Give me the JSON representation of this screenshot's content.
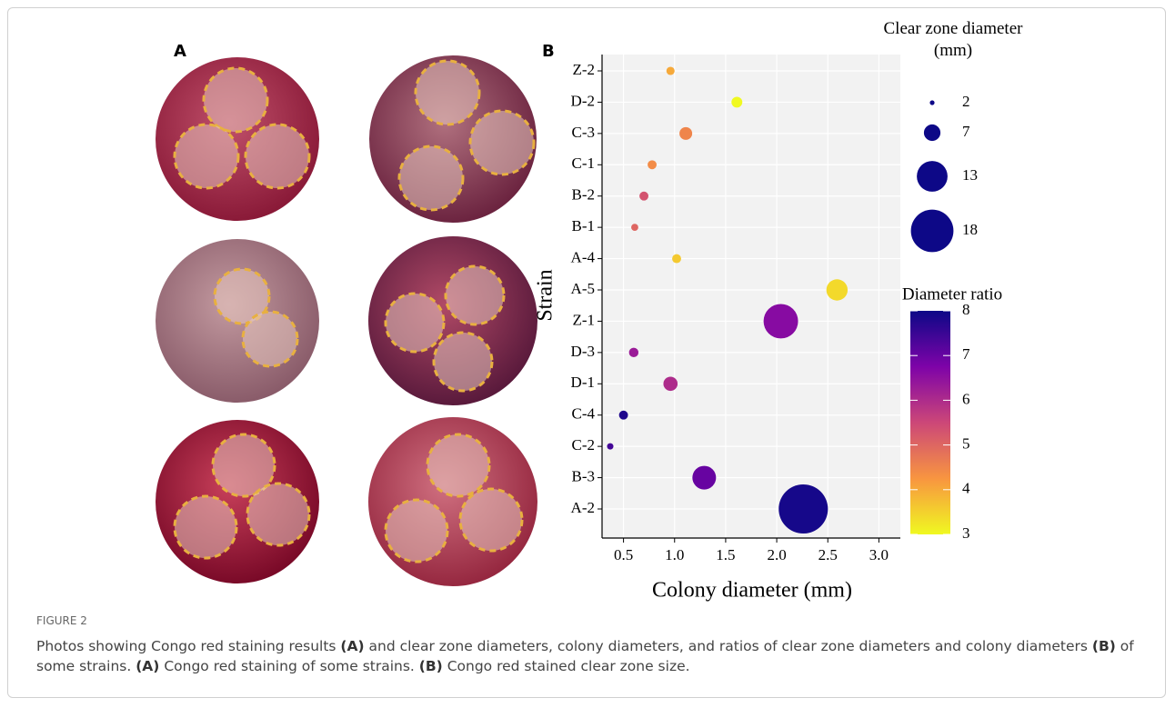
{
  "figure": {
    "panel_a_label": "A",
    "panel_b_label": "B",
    "figure_label": "FIGURE 2",
    "caption": [
      {
        "text": "Photos showing Congo red staining results ",
        "bold": false
      },
      {
        "text": "(A)",
        "bold": true
      },
      {
        "text": " and clear zone diameters, colony diameters, and ratios of clear zone diameters and colony diameters ",
        "bold": false
      },
      {
        "text": "(B)",
        "bold": true
      },
      {
        "text": " of some strains. ",
        "bold": false
      },
      {
        "text": "(A)",
        "bold": true
      },
      {
        "text": " Congo red staining of some strains. ",
        "bold": false
      },
      {
        "text": "(B)",
        "bold": true
      },
      {
        "text": " Congo red stained clear zone size.",
        "bold": false
      }
    ]
  },
  "chart_data": {
    "type": "bubble",
    "categories": [
      "Z-2",
      "D-2",
      "C-3",
      "C-1",
      "B-2",
      "B-1",
      "A-4",
      "A-5",
      "Z-1",
      "D-3",
      "D-1",
      "C-4",
      "C-2",
      "B-3",
      "A-2"
    ],
    "x": [
      0.96,
      1.61,
      1.11,
      0.78,
      0.7,
      0.61,
      1.02,
      2.59,
      2.04,
      0.6,
      0.96,
      0.5,
      0.37,
      1.29,
      2.26
    ],
    "sizes": [
      3.5,
      4.6,
      5.4,
      3.8,
      3.8,
      3.0,
      3.8,
      9.0,
      14.6,
      4.0,
      6.0,
      3.8,
      2.7,
      10.0,
      20.8
    ],
    "ratios": [
      4.0,
      3.0,
      4.5,
      4.4,
      5.3,
      5.0,
      3.6,
      3.4,
      6.6,
      6.3,
      6.0,
      7.8,
      7.4,
      7.0,
      7.9
    ],
    "xlim": [
      0.29,
      3.21
    ],
    "xticks": [
      0.5,
      {
        "value": 1,
        "label": "1.0"
      },
      1.5,
      {
        "value": 2,
        "label": "2.0"
      },
      2.5,
      {
        "value": 3,
        "label": "3.0"
      }
    ],
    "x_label": "Colony diameter (mm)",
    "y_label": "Strain",
    "grid": true,
    "size_legend": {
      "title": "Clear zone diameter (mm)",
      "values": [
        2,
        7,
        13,
        18
      ],
      "color": "#0d0887"
    },
    "colorbar": {
      "title": "Diameter ratio",
      "range": [
        3,
        8
      ],
      "ticks": [
        3,
        4,
        5,
        6,
        7,
        8
      ],
      "colormap": [
        "#f0f921",
        "#f89540",
        "#cc4778",
        "#7e03a8",
        "#0d0887"
      ]
    }
  }
}
